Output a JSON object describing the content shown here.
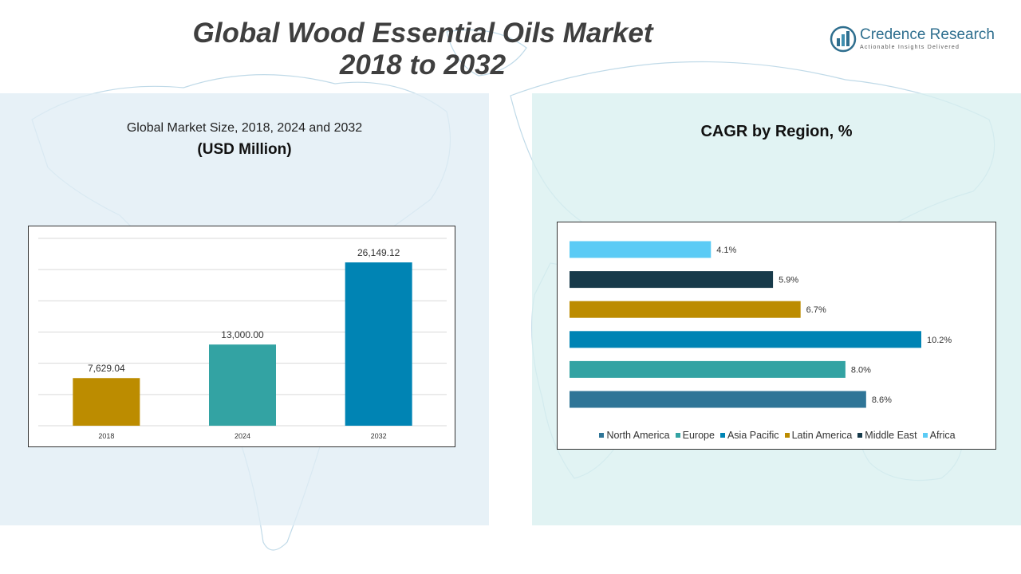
{
  "header": {
    "title_line1": "Global Wood Essential Oils Market",
    "title_line2": "2018 to 2032"
  },
  "logo": {
    "name": "Credence Research",
    "tagline": "Actionable Insights Delivered",
    "icon": "bar-chart-logo-icon"
  },
  "left_panel": {
    "subtitle": "Global Market Size, 2018, 2024 and 2032",
    "unit": "(USD Million)"
  },
  "right_panel": {
    "title": "CAGR by Region, %"
  },
  "colors": {
    "gold": "#BC8C00",
    "teal": "#33A3A3",
    "blue": "#0084B4",
    "navy": "#173A4A",
    "sky": "#5BCBF5",
    "steel": "#2F7597"
  },
  "chart_data": [
    {
      "type": "bar",
      "title": "Global Market Size, 2018, 2024 and 2032",
      "ylabel": "(USD Million)",
      "categories": [
        "2018",
        "2024",
        "2032"
      ],
      "values": [
        7629.04,
        13000.0,
        26149.12
      ],
      "value_labels": [
        "7,629.04",
        "13,000.00",
        "26,149.12"
      ],
      "bar_colors": [
        "#BC8C00",
        "#33A3A3",
        "#0084B4"
      ],
      "ylim": [
        0,
        30000
      ],
      "grid": true
    },
    {
      "type": "bar",
      "orientation": "horizontal",
      "title": "CAGR by Region, %",
      "categories": [
        "North America",
        "Europe",
        "Asia Pacific",
        "Latin America",
        "Middle East",
        "Africa"
      ],
      "values": [
        8.6,
        8.0,
        10.2,
        6.7,
        5.9,
        4.1
      ],
      "value_labels": [
        "8.6%",
        "8.0%",
        "10.2%",
        "6.7%",
        "5.9%",
        "4.1%"
      ],
      "bar_colors": [
        "#2F7597",
        "#33A3A3",
        "#0084B4",
        "#BC8C00",
        "#173A4A",
        "#5BCBF5"
      ],
      "xlim": [
        0,
        11
      ],
      "legend": "bottom",
      "grid": false
    }
  ]
}
